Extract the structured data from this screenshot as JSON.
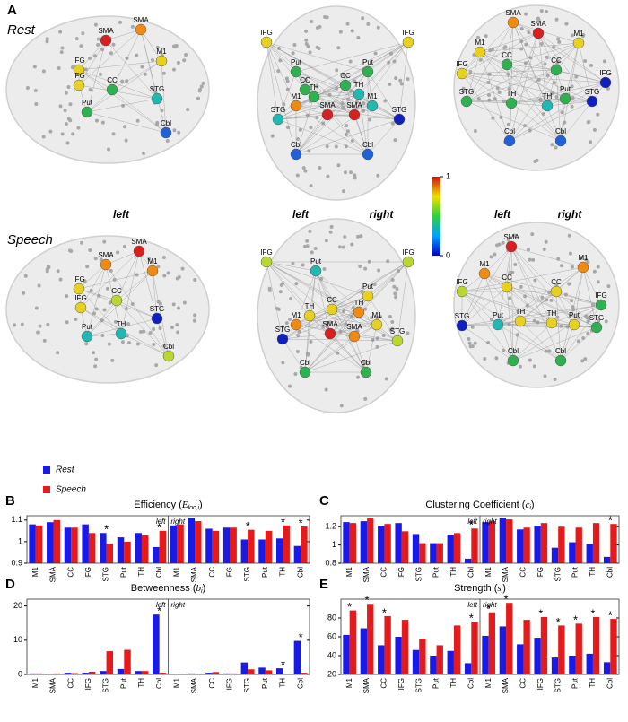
{
  "figure": {
    "panel": "A",
    "conditions": [
      "Rest",
      "Speech"
    ],
    "view_labels": [
      "left",
      "left",
      "right",
      "left",
      "right"
    ],
    "colorbar_ticks": [
      0,
      1
    ],
    "views": [
      {
        "nodes": [
          "SMA",
          "SMA",
          "M1",
          "IFG",
          "IFG",
          "CC",
          "Put",
          "STG",
          "Cbl"
        ]
      },
      {
        "nodes": [
          "IFG",
          "Put",
          "Put",
          "IFG",
          "CC",
          "CC",
          "TH",
          "TH",
          "M1",
          "M1",
          "STG",
          "STG",
          "SMA",
          "SMA",
          "Cbl",
          "Cbl"
        ]
      },
      {
        "nodes": [
          "SMA",
          "SMA",
          "M1",
          "M1",
          "IFG",
          "CC",
          "CC",
          "IFG",
          "STG",
          "TH",
          "TH",
          "Put",
          "STG",
          "Cbl",
          "Cbl"
        ]
      },
      {
        "nodes": [
          "SMA",
          "SMA",
          "M1",
          "IFG",
          "IFG",
          "CC",
          "Put",
          "TH",
          "STG",
          "Cbl"
        ]
      },
      {
        "nodes": [
          "IFG",
          "Put",
          "IFG",
          "CC",
          "TH",
          "TH",
          "M1",
          "M1",
          "STG",
          "SMA",
          "SMA",
          "STG",
          "Cbl",
          "Cbl",
          "Put"
        ]
      },
      {
        "nodes": [
          "SMA",
          "M1",
          "M1",
          "IFG",
          "CC",
          "CC",
          "IFG",
          "STG",
          "Put",
          "TH",
          "TH",
          "Put",
          "STG",
          "Cbl",
          "Cbl"
        ]
      }
    ]
  },
  "chart_data": [
    {
      "type": "bar",
      "panel": "B",
      "title": "Efficiency (",
      "title_symbol": "E",
      "title_sub": "loc,i",
      "title_end": ")",
      "legend": true,
      "hemispheres": [
        "left",
        "right"
      ],
      "categories": [
        "M1",
        "SMA",
        "CC",
        "IFG",
        "STG",
        "Put",
        "TH",
        "Cbl",
        "M1",
        "SMA",
        "CC",
        "IFG",
        "STG",
        "Put",
        "TH",
        "Cbl"
      ],
      "series": [
        {
          "name": "Rest",
          "color": "#1a1ae6",
          "values": [
            1.08,
            1.09,
            1.065,
            1.08,
            1.04,
            1.02,
            1.04,
            0.975,
            1.075,
            1.11,
            1.06,
            1.065,
            1.01,
            1.01,
            1.015,
            0.98
          ]
        },
        {
          "name": "Speech",
          "color": "#e61a1a",
          "values": [
            1.075,
            1.1,
            1.065,
            1.04,
            0.99,
            1.0,
            1.03,
            1.05,
            1.08,
            1.095,
            1.05,
            1.065,
            1.055,
            1.05,
            1.075,
            1.07
          ]
        }
      ],
      "stars": [
        null,
        null,
        null,
        null,
        "*",
        null,
        null,
        "*",
        null,
        null,
        null,
        null,
        "*",
        null,
        "*",
        "*"
      ],
      "ylim": [
        0.9,
        1.12
      ],
      "yticks": [
        0.9,
        1,
        1.1
      ]
    },
    {
      "type": "bar",
      "panel": "C",
      "title": "Clustering Coefficient (",
      "title_symbol": "c",
      "title_sub": "i",
      "title_end": ")",
      "legend": false,
      "hemispheres": [
        "left",
        "right"
      ],
      "categories": [
        "M1",
        "SMA",
        "CC",
        "IFG",
        "STG",
        "Put",
        "TH",
        "Cbl",
        "M1",
        "SMA",
        "CC",
        "IFG",
        "STG",
        "Put",
        "TH",
        "Cbl"
      ],
      "series": [
        {
          "name": "Rest",
          "color": "#1a1ae6",
          "values": [
            1.25,
            1.26,
            1.21,
            1.24,
            1.12,
            1.02,
            1.11,
            0.85,
            1.25,
            1.3,
            1.17,
            1.21,
            0.97,
            1.03,
            1.01,
            0.87
          ]
        },
        {
          "name": "Speech",
          "color": "#e61a1a",
          "values": [
            1.24,
            1.29,
            1.23,
            1.15,
            1.02,
            1.02,
            1.13,
            1.18,
            1.26,
            1.28,
            1.19,
            1.24,
            1.2,
            1.19,
            1.24,
            1.23
          ]
        }
      ],
      "stars": [
        null,
        null,
        null,
        null,
        null,
        null,
        null,
        "*",
        null,
        null,
        null,
        null,
        null,
        null,
        null,
        "*"
      ],
      "ylim": [
        0.8,
        1.32
      ],
      "yticks": [
        0.8,
        1,
        1.2
      ]
    },
    {
      "type": "bar",
      "panel": "D",
      "title": "Betweenness (",
      "title_symbol": "b",
      "title_sub": "i",
      "title_end": ")",
      "legend": false,
      "hemispheres": [
        "left",
        "right"
      ],
      "categories": [
        "M1",
        "SMA",
        "CC",
        "IFG",
        "STG",
        "Put",
        "TH",
        "Cbl",
        "M1",
        "SMA",
        "CC",
        "IFG",
        "STG",
        "Put",
        "TH",
        "Cbl"
      ],
      "series": [
        {
          "name": "Rest",
          "color": "#1a1ae6",
          "values": [
            0.3,
            0.2,
            0.5,
            0.5,
            1,
            1.6,
            1,
            17.5,
            0.2,
            0.3,
            0.5,
            0.3,
            3.5,
            2,
            1.8,
            9.8
          ]
        },
        {
          "name": "Speech",
          "color": "#e61a1a",
          "values": [
            0.3,
            0.3,
            0.4,
            0.8,
            6.8,
            7.2,
            1,
            0.5,
            0.2,
            0.2,
            0.7,
            0.3,
            1.5,
            1.2,
            0.2,
            0.5
          ]
        }
      ],
      "stars": [
        null,
        null,
        null,
        null,
        null,
        null,
        null,
        "*",
        null,
        null,
        null,
        null,
        null,
        null,
        "*",
        "*"
      ],
      "ylim": [
        0,
        22
      ],
      "yticks": [
        0,
        10,
        20
      ]
    },
    {
      "type": "bar",
      "panel": "E",
      "title": "Strength (",
      "title_symbol": "s",
      "title_sub": "i",
      "title_end": ")",
      "legend": false,
      "hemispheres": [
        "left",
        "right"
      ],
      "categories": [
        "M1",
        "SMA",
        "CC",
        "IFG",
        "STG",
        "Put",
        "TH",
        "Cbl",
        "M1",
        "SMA",
        "CC",
        "IFG",
        "STG",
        "Put",
        "TH",
        "Cbl"
      ],
      "series": [
        {
          "name": "Rest",
          "color": "#1a1ae6",
          "values": [
            62,
            69,
            51,
            60,
            46,
            40,
            45,
            32,
            61,
            71,
            52,
            59,
            38,
            40,
            42,
            33
          ]
        },
        {
          "name": "Speech",
          "color": "#e61a1a",
          "values": [
            88,
            95,
            82,
            78,
            58,
            51,
            72,
            76,
            86,
            96,
            78,
            81,
            72,
            74,
            81,
            79
          ]
        }
      ],
      "stars": [
        "*",
        "*",
        "*",
        null,
        null,
        null,
        null,
        "*",
        "*",
        "*",
        null,
        "*",
        "*",
        "*",
        "*",
        "*"
      ],
      "ylim": [
        20,
        100
      ],
      "yticks": [
        20,
        40,
        60,
        80
      ]
    }
  ]
}
